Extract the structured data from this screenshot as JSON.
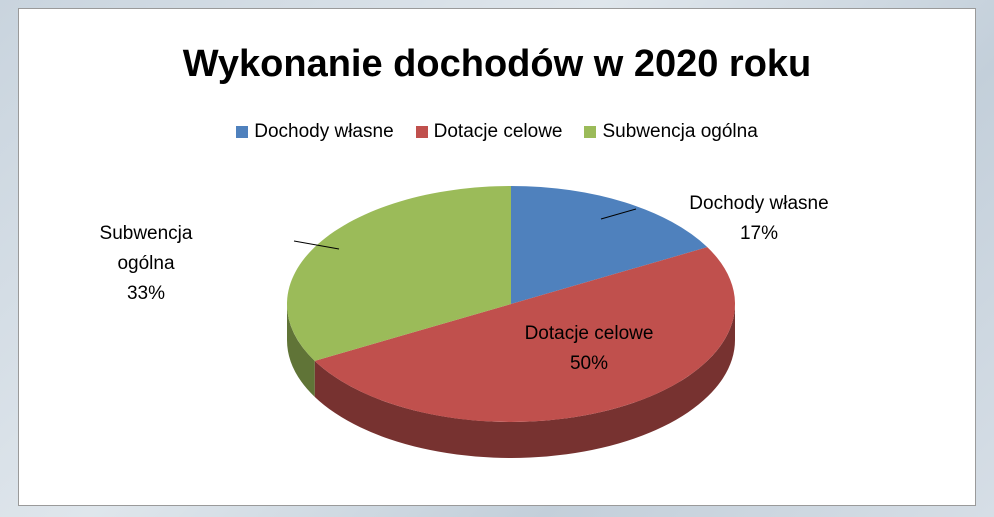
{
  "chart_data": {
    "type": "pie",
    "title": "Wykonanie dochodów w 2020 roku",
    "categories": [
      "Dochody własne",
      "Dotacje celowe",
      "Subwencja ogólna"
    ],
    "values": [
      17,
      50,
      33
    ],
    "value_labels": [
      "17%",
      "50%",
      "33%"
    ],
    "colors": [
      "#4f81bd",
      "#c0504d",
      "#9bbb59"
    ],
    "legend": "top"
  }
}
